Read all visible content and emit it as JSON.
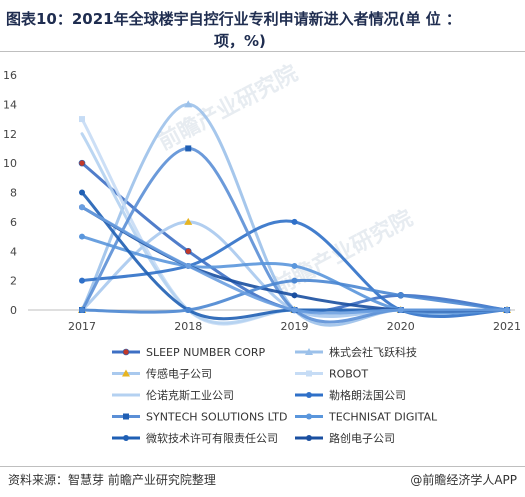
{
  "title_line1": "图表10：2021年全球楼宇自控行业专利申请新进入者情况(单 位 ：",
  "title_line2": "项，%)",
  "source": "资料来源：智慧芽 前瞻产业研究院整理",
  "credit": "@前瞻经济学人APP",
  "watermark": "前瞻产业研究院",
  "chart_data": {
    "type": "line",
    "x": [
      "2017",
      "2018",
      "2019",
      "2020",
      "2021"
    ],
    "ylim": [
      0,
      16
    ],
    "yticks": [
      "0",
      "2",
      "4",
      "6",
      "8",
      "10",
      "12",
      "14",
      "16"
    ],
    "smooth": true,
    "grid": false,
    "legend_position": "bottom",
    "series": [
      {
        "name": "SLEEP NUMBER CORP",
        "values": [
          10,
          4,
          0,
          1,
          0
        ],
        "color": "#3d6fc4",
        "marker": "circle-red",
        "marker_color": "#c0392b"
      },
      {
        "name": "株式会社飞跃科技",
        "values": [
          0,
          14,
          0,
          0,
          0
        ],
        "color": "#9cc1ea",
        "marker": "triangle"
      },
      {
        "name": "传感电子公司",
        "values": [
          0,
          6,
          0,
          0,
          0
        ],
        "color": "#a9c9ee",
        "marker": "triangle-gold",
        "marker_color": "#e6b422"
      },
      {
        "name": "ROBOT",
        "values": [
          13,
          0,
          0,
          0,
          0
        ],
        "color": "#c6dcf5",
        "marker": "square"
      },
      {
        "name": "伦诺克斯工业公司",
        "values": [
          12,
          0,
          0,
          0,
          0
        ],
        "color": "#b4d1f1",
        "marker": "none"
      },
      {
        "name": "勒格朗法国公司",
        "values": [
          2,
          3,
          6,
          0,
          0
        ],
        "color": "#2f70c8",
        "marker": "circle"
      },
      {
        "name": "SYNTECH SOLUTIONS LTD",
        "values": [
          0,
          11,
          0,
          0,
          0
        ],
        "color": "#5b8fd6",
        "marker": "square-dark",
        "marker_color": "#1f5fb4"
      },
      {
        "name": "TECHNISAT DIGITAL",
        "values": [
          5,
          3,
          3,
          0,
          0
        ],
        "color": "#5a96dc",
        "marker": "circle"
      },
      {
        "name": "微软技术许可有限责任公司",
        "values": [
          8,
          0,
          0,
          0,
          0
        ],
        "color": "#1f5fb4",
        "marker": "circle"
      },
      {
        "name": "路创电子公司",
        "values": [
          7,
          3,
          1,
          0,
          0
        ],
        "color": "#1a4fa0",
        "marker": "circle"
      },
      {
        "name": "",
        "values": [
          0,
          0,
          2,
          1,
          0
        ],
        "color": "#4a86d2",
        "marker": "circle"
      },
      {
        "name": "",
        "values": [
          7,
          3,
          0,
          0,
          0
        ],
        "color": "#6a9ee0",
        "marker": "circle"
      }
    ]
  }
}
